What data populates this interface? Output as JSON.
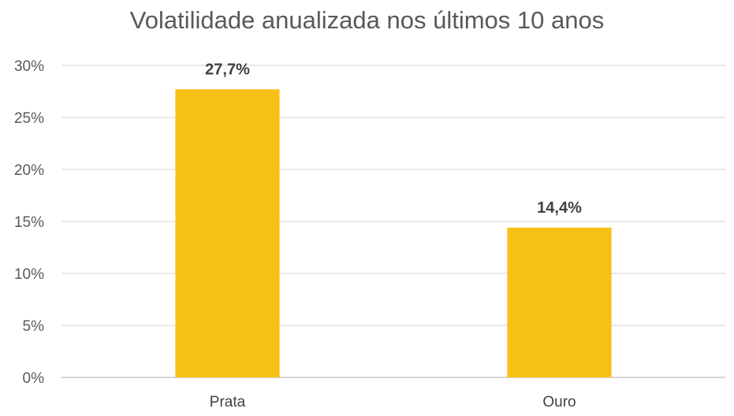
{
  "chart_data": {
    "type": "bar",
    "title": "Volatilidade anualizada nos últimos 10 anos",
    "categories": [
      "Prata",
      "Ouro"
    ],
    "values": [
      27.7,
      14.4
    ],
    "data_labels": [
      "27,7%",
      "14,4%"
    ],
    "ylim": [
      0,
      30
    ],
    "yticks": [
      0,
      5,
      10,
      15,
      20,
      25,
      30
    ],
    "ytick_labels": [
      "0%",
      "5%",
      "10%",
      "15%",
      "20%",
      "25%",
      "30%"
    ],
    "xlabel": "",
    "ylabel": "",
    "grid": true,
    "bar_color": "#F6C016"
  }
}
